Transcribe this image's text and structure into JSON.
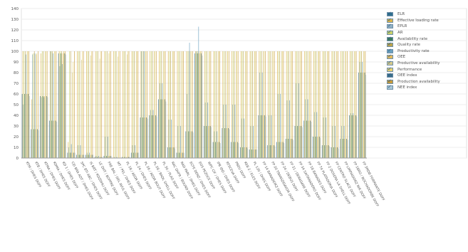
{
  "chart_data": {
    "type": "bar",
    "title": "",
    "xlabel": "",
    "ylabel": "",
    "ylim": [
      0,
      140
    ],
    "yticks": [
      0,
      10,
      20,
      30,
      40,
      50,
      60,
      70,
      80,
      90,
      100,
      110,
      120,
      130,
      140
    ],
    "grid": true,
    "legend_position": "top-right",
    "colors": [
      "#2f6f8f",
      "#d9b34a",
      "#8fb0c4",
      "#c8d06a",
      "#3c7a5c",
      "#bba24a",
      "#6aa0c0",
      "#e3b85a",
      "#d6c98a",
      "#e8d070",
      "#3a6e8c",
      "#c79a3a",
      "#a9c7d6"
    ],
    "categories": [
      "KTM / DHES DOFF",
      "KTB / DHES DOFF",
      "KTMA / DHES DOFF",
      "KDMA / DHES DOFF",
      "KD 1 / DHES DOFF",
      "CEI BRA ADT / DHES DOFF",
      "SPC BTI ABC / DHES DOFF",
      "IS BRT / KDZDHLI DOFF",
      "LE DHT / BOPPRE DOFF",
      "FRE BAL / DEL AVUL DOFF",
      "MT / PEL / DHES DOFF",
      "PL 18 / AEDR DOFF",
      "PL 24 / DHES DOFF",
      "PL 26 / AEDR BOUT DOFF",
      "PL 28 / BADL SHELL DOFF",
      "PL 30 / PLAG DOFF",
      "RAC DHFR / BOUND DOFF",
      "RAD PARL / DHES DOFF",
      "ECFE DENZ / DHES DOFF",
      "EOS PEZOCE DOFF",
      "WPC CIF / DHES DOFF",
      "IPB IDD / DHES DOFF",
      "RTSCEVA DOFF",
      "PNEU DOFF",
      "KEB 2 / ELES DOFF",
      "PL 120 / DHES DOFF",
      "FP 14 BANADEIRZ DOFF",
      "FP 20 TRANSDDAVOR DOFF",
      "FP 24 / DEBUS DOFF",
      "FP 31 / DERADARE DOFF",
      "FP 34 SAITANADERO DOFF",
      "FP 18 BANADES DOFF",
      "FP 74 PLATADORIA DOFF",
      "FP 2 DOSERA LA SHELL DOFF",
      "FP CENTRO SLACE DOFF",
      "FP LIMPIADORZ NIR DOFF",
      "FP 1BRO / BOCHADORBE DOFF",
      "FP 3MDB FORMANTE DOFF"
    ],
    "series": [
      {
        "name": "ELR",
        "values": [
          60,
          27,
          58,
          35,
          98,
          5,
          3,
          3,
          1,
          2,
          0,
          1,
          5,
          38,
          40,
          55,
          10,
          5,
          25,
          98,
          30,
          15,
          28,
          15,
          10,
          8,
          40,
          12,
          15,
          18,
          30,
          35,
          20,
          12,
          10,
          18,
          40,
          80
        ]
      },
      {
        "name": "Effective loading rate",
        "values": [
          100,
          55,
          98,
          100,
          100,
          15,
          100,
          100,
          100,
          100,
          100,
          100,
          100,
          100,
          100,
          100,
          100,
          100,
          100,
          100,
          100,
          100,
          100,
          100,
          100,
          100,
          100,
          100,
          100,
          100,
          100,
          100,
          100,
          100,
          100,
          100,
          100,
          100
        ]
      },
      {
        "name": "EPLR",
        "values": [
          50,
          97,
          57,
          100,
          86,
          10,
          12,
          5,
          2,
          20,
          1,
          0,
          12,
          100,
          45,
          70,
          36,
          30,
          60,
          100,
          52,
          25,
          50,
          50,
          37,
          30,
          80,
          40,
          60,
          54,
          70,
          55,
          43,
          38,
          30,
          30,
          42,
          90
        ]
      },
      {
        "name": "AR",
        "values": [
          100,
          98,
          100,
          100,
          100,
          100,
          100,
          100,
          100,
          100,
          100,
          100,
          100,
          100,
          100,
          100,
          100,
          100,
          100,
          100,
          100,
          100,
          100,
          100,
          100,
          100,
          100,
          100,
          100,
          100,
          100,
          100,
          100,
          100,
          100,
          100,
          100,
          100
        ]
      },
      {
        "name": "Availability rate",
        "values": [
          60,
          27,
          58,
          35,
          98,
          5,
          3,
          3,
          1,
          2,
          0,
          1,
          5,
          38,
          40,
          55,
          10,
          5,
          25,
          98,
          30,
          15,
          28,
          15,
          10,
          8,
          40,
          12,
          15,
          18,
          30,
          35,
          20,
          12,
          10,
          18,
          40,
          80
        ]
      },
      {
        "name": "Quality rate",
        "values": [
          100,
          100,
          100,
          100,
          100,
          100,
          100,
          100,
          100,
          100,
          100,
          100,
          100,
          100,
          100,
          100,
          100,
          100,
          100,
          100,
          100,
          100,
          100,
          100,
          100,
          100,
          100,
          100,
          100,
          100,
          100,
          100,
          100,
          100,
          100,
          100,
          100,
          100
        ]
      },
      {
        "name": "Productivity rate",
        "values": [
          97,
          98,
          57,
          98,
          88,
          13,
          12,
          5,
          2,
          20,
          1,
          0,
          12,
          100,
          45,
          70,
          36,
          30,
          108,
          123,
          52,
          25,
          50,
          50,
          37,
          30,
          80,
          40,
          60,
          54,
          70,
          55,
          43,
          38,
          30,
          30,
          42,
          90
        ]
      },
      {
        "name": "OEE",
        "values": [
          60,
          27,
          58,
          35,
          98,
          5,
          3,
          3,
          1,
          2,
          0,
          1,
          5,
          38,
          40,
          55,
          10,
          5,
          25,
          98,
          30,
          15,
          28,
          15,
          10,
          8,
          40,
          12,
          15,
          18,
          30,
          35,
          20,
          12,
          10,
          18,
          40,
          80
        ]
      },
      {
        "name": "Productive availability",
        "values": [
          100,
          97,
          100,
          100,
          100,
          80,
          92,
          96,
          93,
          98,
          95,
          97,
          100,
          100,
          100,
          100,
          100,
          100,
          100,
          100,
          100,
          100,
          100,
          100,
          100,
          100,
          100,
          100,
          100,
          100,
          100,
          100,
          100,
          100,
          100,
          100,
          100,
          100
        ]
      },
      {
        "name": "Performance",
        "values": [
          100,
          98,
          100,
          100,
          100,
          90,
          100,
          100,
          100,
          100,
          100,
          100,
          100,
          100,
          100,
          100,
          100,
          100,
          100,
          100,
          100,
          100,
          100,
          100,
          100,
          100,
          100,
          100,
          100,
          100,
          100,
          100,
          100,
          100,
          100,
          100,
          100,
          100
        ]
      },
      {
        "name": "OEE index",
        "values": [
          60,
          27,
          58,
          35,
          98,
          5,
          3,
          3,
          1,
          2,
          0,
          1,
          5,
          38,
          40,
          55,
          10,
          5,
          25,
          98,
          30,
          15,
          28,
          15,
          10,
          8,
          40,
          12,
          15,
          18,
          30,
          35,
          20,
          12,
          10,
          18,
          40,
          80
        ]
      },
      {
        "name": "Production availability",
        "values": [
          100,
          100,
          100,
          100,
          100,
          100,
          100,
          100,
          100,
          100,
          100,
          100,
          100,
          100,
          100,
          100,
          100,
          100,
          100,
          100,
          100,
          100,
          100,
          100,
          100,
          100,
          100,
          100,
          100,
          100,
          100,
          100,
          100,
          100,
          100,
          100,
          100,
          100
        ]
      },
      {
        "name": "NEE index",
        "values": [
          58,
          26,
          57,
          34,
          97,
          5,
          3,
          3,
          1,
          2,
          0,
          1,
          5,
          37,
          39,
          53,
          9,
          5,
          24,
          96,
          29,
          14,
          27,
          14,
          9,
          8,
          39,
          11,
          14,
          17,
          29,
          34,
          19,
          11,
          9,
          17,
          39,
          78
        ]
      }
    ]
  }
}
